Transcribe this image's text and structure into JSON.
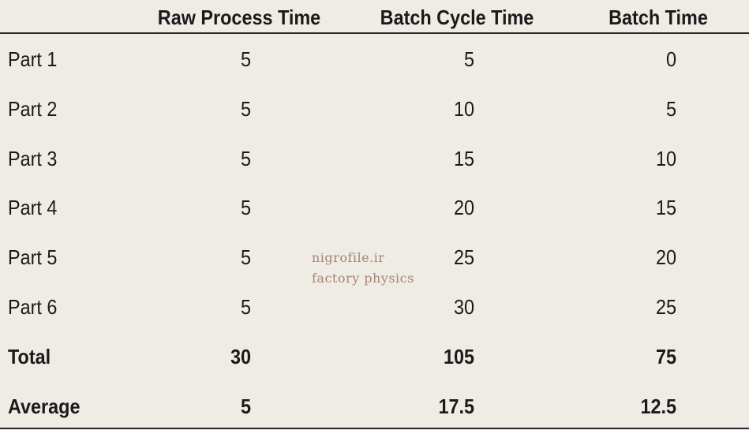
{
  "table": {
    "headers": [
      "Raw Process Time",
      "Batch Cycle Time",
      "Batch Time"
    ],
    "rows": [
      [
        "Part 1",
        5,
        5,
        0
      ],
      [
        "Part 2",
        5,
        10,
        5
      ],
      [
        "Part 3",
        5,
        15,
        10
      ],
      [
        "Part 4",
        5,
        20,
        15
      ],
      [
        "Part 5",
        5,
        25,
        20
      ],
      [
        "Part 6",
        5,
        30,
        25
      ],
      [
        "Total",
        30,
        105,
        75
      ],
      [
        "Average",
        5,
        17.5,
        12.5
      ]
    ]
  },
  "watermark": [
    "nigrofile.ir",
    "factory physics"
  ]
}
